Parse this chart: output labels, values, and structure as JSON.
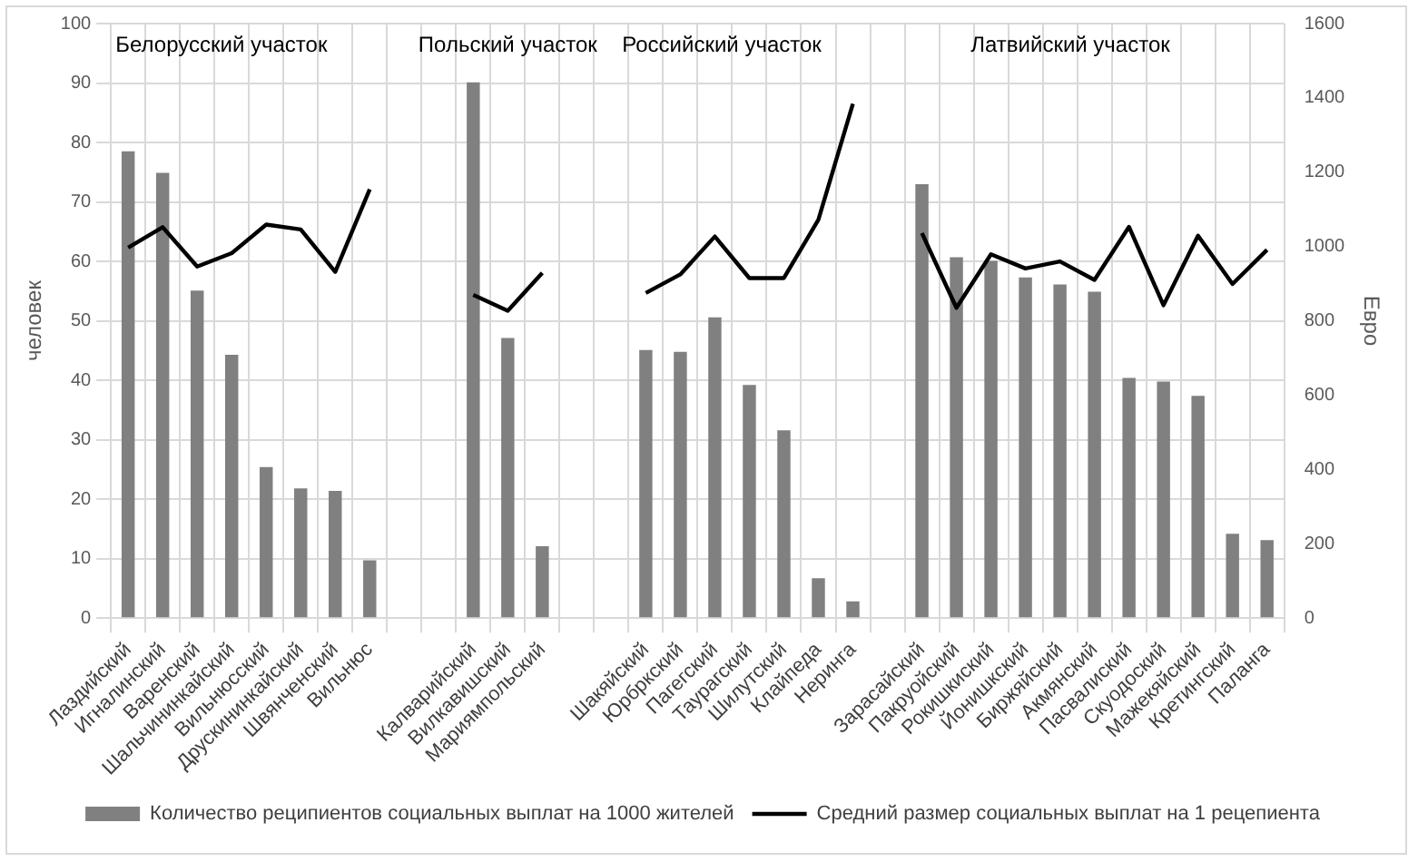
{
  "chart_data": {
    "type": "bar",
    "ylabel": "человек",
    "y2label": "Евро",
    "categories": [
      "Лаздийский",
      "Игналинский",
      "Варенский",
      "Шальчининкайский",
      "Вильнюсский",
      "Друскининкайский",
      "Швянченский",
      "Вильнюс",
      null,
      null,
      "Калварийский",
      "Вилкавишский",
      "Мариямпольский",
      null,
      null,
      "Шакяйский",
      "Юрбркский",
      "Пагегский",
      "Таурагский",
      "Шилутский",
      "Клайпеда",
      "Неринга",
      null,
      "Зарасайский",
      "Пакруойский",
      "Рокишкиский",
      "Йонишкский",
      "Биржяйский",
      "Акмянский",
      "Пасвалиский",
      "Скуодоский",
      "Мажекяйский",
      "Кретингский",
      "Паланга"
    ],
    "series": [
      {
        "name": "Количество реципиентов социальных выплат на 1000 жителей",
        "color": "#808080",
        "values": [
          78.5,
          74.9,
          55.1,
          44.3,
          25.4,
          21.8,
          21.4,
          9.7,
          null,
          null,
          90.1,
          47.1,
          12.1,
          null,
          null,
          45.1,
          44.8,
          50.6,
          39.2,
          31.6,
          6.7,
          2.8,
          null,
          73.0,
          60.7,
          60.1,
          57.3,
          56.1,
          54.9,
          40.4,
          39.8,
          37.4,
          14.2,
          13.1
        ]
      },
      {
        "name": "Средний размер социальных выплат на 1 рецепиента",
        "type": "line",
        "axis": "y2",
        "color": "#000000",
        "values": [
          997,
          1052,
          946,
          982,
          1059,
          1046,
          932,
          1154,
          null,
          null,
          870,
          827,
          929,
          null,
          null,
          875,
          925,
          1027,
          915,
          915,
          1072,
          1384,
          null,
          1036,
          835,
          979,
          941,
          960,
          910,
          1053,
          842,
          1029,
          899,
          991
        ]
      }
    ],
    "ylim": [
      0,
      100
    ],
    "yticks": [
      0,
      10,
      20,
      30,
      40,
      50,
      60,
      70,
      80,
      90,
      100
    ],
    "y2lim": [
      0,
      1600
    ],
    "y2ticks": [
      0,
      200,
      400,
      600,
      800,
      1000,
      1200,
      1400,
      1600
    ],
    "annotations": [
      "Белорусский участок",
      "Польский участок",
      "Российский участок",
      "Латвийский участок"
    ],
    "grid": true,
    "legend": "bottom",
    "marker": "none",
    "line_style": "solid"
  }
}
